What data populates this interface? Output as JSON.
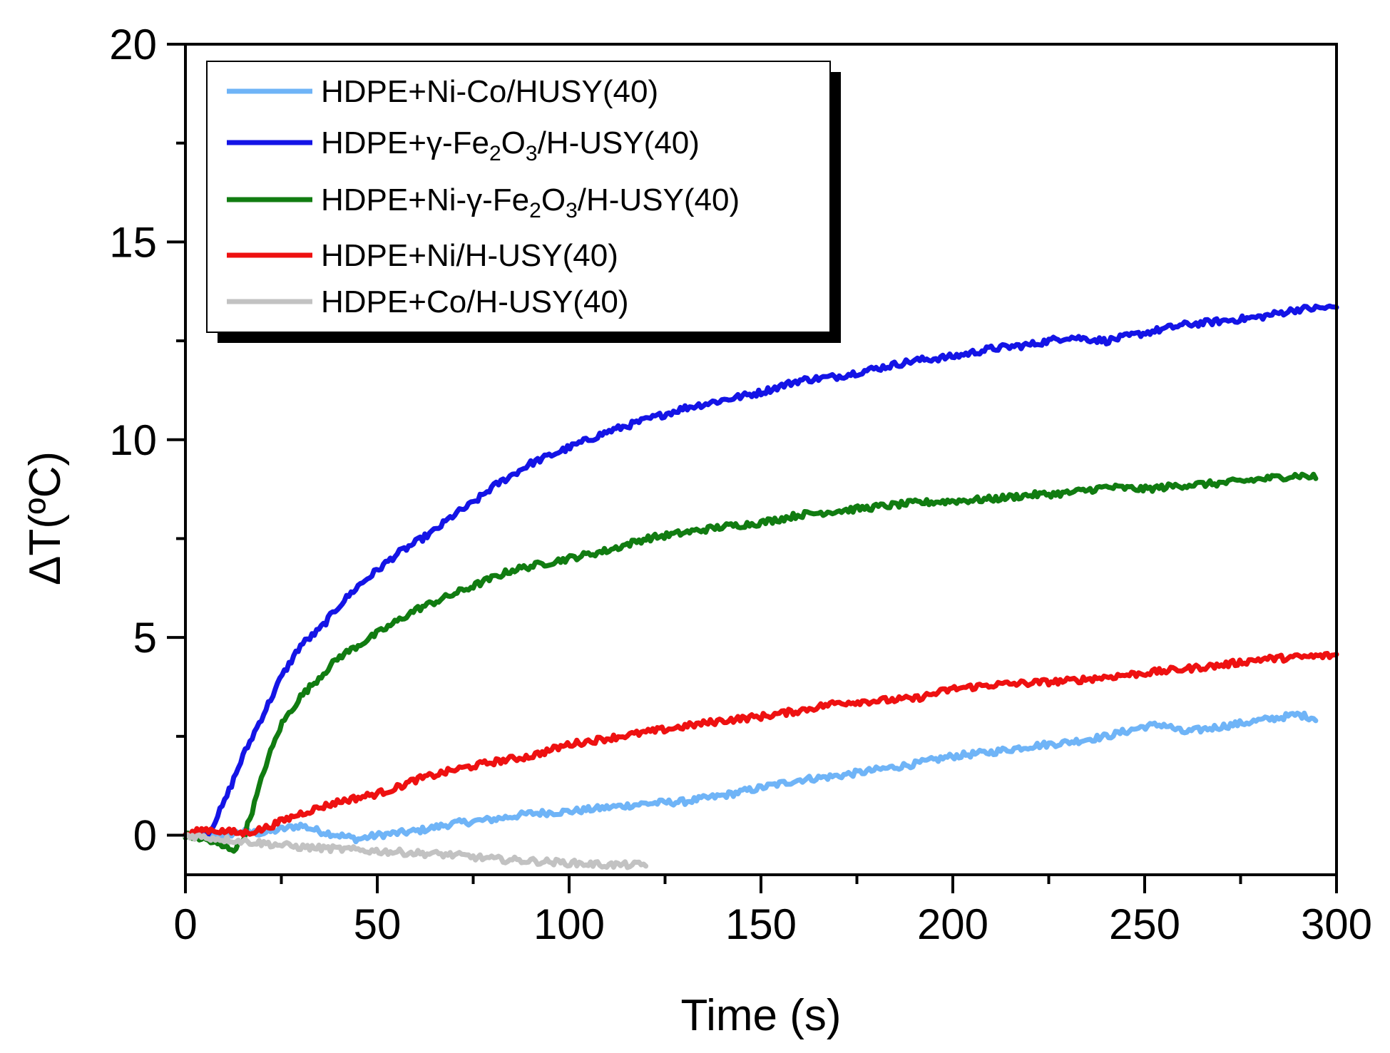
{
  "chart_data": {
    "type": "line",
    "title": "",
    "xlabel": "Time (s)",
    "ylabel": "ΔT(ºC)",
    "xlim": [
      0,
      300
    ],
    "ylim": [
      -1,
      20
    ],
    "x_ticks": [
      0,
      50,
      100,
      150,
      200,
      250,
      300
    ],
    "y_ticks": [
      0,
      5,
      10,
      15,
      20
    ],
    "legend_position": "top-left",
    "legend_shadow": true,
    "series": [
      {
        "name": "HDPE+Ni-Co/HUSY(40)",
        "label_parts": [
          {
            "t": "HDPE+Ni-Co/HUSY(40)"
          }
        ],
        "color": "#6fb4f7",
        "points": [
          [
            0,
            0
          ],
          [
            5,
            0.05
          ],
          [
            10,
            0
          ],
          [
            15,
            0.1
          ],
          [
            20,
            0.05
          ],
          [
            25,
            0.15
          ],
          [
            30,
            0.25
          ],
          [
            35,
            0.1
          ],
          [
            40,
            0
          ],
          [
            45,
            -0.1
          ],
          [
            50,
            0
          ],
          [
            60,
            0.1
          ],
          [
            70,
            0.3
          ],
          [
            80,
            0.4
          ],
          [
            90,
            0.55
          ],
          [
            100,
            0.6
          ],
          [
            110,
            0.7
          ],
          [
            120,
            0.8
          ],
          [
            130,
            0.85
          ],
          [
            140,
            1.0
          ],
          [
            150,
            1.2
          ],
          [
            160,
            1.4
          ],
          [
            170,
            1.5
          ],
          [
            180,
            1.65
          ],
          [
            190,
            1.8
          ],
          [
            200,
            2.0
          ],
          [
            210,
            2.1
          ],
          [
            220,
            2.25
          ],
          [
            230,
            2.35
          ],
          [
            240,
            2.5
          ],
          [
            250,
            2.75
          ],
          [
            255,
            2.8
          ],
          [
            260,
            2.6
          ],
          [
            270,
            2.75
          ],
          [
            280,
            2.9
          ],
          [
            290,
            3.05
          ],
          [
            295,
            2.95
          ]
        ]
      },
      {
        "name": "HDPE+γ-Fe2O3/H-USY(40)",
        "label_parts": [
          {
            "t": "HDPE+γ-Fe"
          },
          {
            "t": "2",
            "sub": true
          },
          {
            "t": "O"
          },
          {
            "t": "3",
            "sub": true
          },
          {
            "t": "/H-USY(40)"
          }
        ],
        "color": "#1414e6",
        "points": [
          [
            0,
            0
          ],
          [
            6,
            0.05
          ],
          [
            10,
            0.8
          ],
          [
            15,
            2.0
          ],
          [
            20,
            3.0
          ],
          [
            25,
            4.0
          ],
          [
            30,
            4.8
          ],
          [
            35,
            5.2
          ],
          [
            40,
            5.8
          ],
          [
            45,
            6.3
          ],
          [
            50,
            6.7
          ],
          [
            55,
            7.1
          ],
          [
            60,
            7.4
          ],
          [
            65,
            7.7
          ],
          [
            70,
            8.1
          ],
          [
            75,
            8.4
          ],
          [
            80,
            8.8
          ],
          [
            85,
            9.1
          ],
          [
            90,
            9.4
          ],
          [
            95,
            9.6
          ],
          [
            100,
            9.8
          ],
          [
            110,
            10.2
          ],
          [
            120,
            10.5
          ],
          [
            130,
            10.8
          ],
          [
            140,
            11.0
          ],
          [
            150,
            11.2
          ],
          [
            160,
            11.5
          ],
          [
            170,
            11.6
          ],
          [
            180,
            11.8
          ],
          [
            190,
            12.0
          ],
          [
            200,
            12.1
          ],
          [
            210,
            12.3
          ],
          [
            220,
            12.4
          ],
          [
            230,
            12.6
          ],
          [
            240,
            12.5
          ],
          [
            250,
            12.7
          ],
          [
            260,
            12.9
          ],
          [
            270,
            13.0
          ],
          [
            280,
            13.1
          ],
          [
            290,
            13.3
          ],
          [
            300,
            13.35
          ]
        ]
      },
      {
        "name": "HDPE+Ni-γ-Fe2O3/H-USY(40)",
        "label_parts": [
          {
            "t": "HDPE+Ni-γ-Fe"
          },
          {
            "t": "2",
            "sub": true
          },
          {
            "t": "O"
          },
          {
            "t": "3",
            "sub": true
          },
          {
            "t": "/H-USY(40)"
          }
        ],
        "color": "#117c11",
        "points": [
          [
            0,
            0
          ],
          [
            5,
            -0.1
          ],
          [
            10,
            -0.3
          ],
          [
            13,
            -0.35
          ],
          [
            15,
            -0.1
          ],
          [
            18,
            0.8
          ],
          [
            21,
            1.8
          ],
          [
            25,
            2.8
          ],
          [
            30,
            3.5
          ],
          [
            35,
            4.0
          ],
          [
            40,
            4.5
          ],
          [
            45,
            4.8
          ],
          [
            50,
            5.1
          ],
          [
            55,
            5.4
          ],
          [
            60,
            5.7
          ],
          [
            65,
            5.9
          ],
          [
            70,
            6.1
          ],
          [
            75,
            6.3
          ],
          [
            80,
            6.5
          ],
          [
            85,
            6.7
          ],
          [
            90,
            6.8
          ],
          [
            95,
            6.9
          ],
          [
            100,
            7.0
          ],
          [
            110,
            7.2
          ],
          [
            120,
            7.5
          ],
          [
            130,
            7.65
          ],
          [
            140,
            7.8
          ],
          [
            150,
            7.9
          ],
          [
            160,
            8.1
          ],
          [
            170,
            8.2
          ],
          [
            180,
            8.3
          ],
          [
            190,
            8.4
          ],
          [
            200,
            8.45
          ],
          [
            210,
            8.5
          ],
          [
            220,
            8.6
          ],
          [
            230,
            8.65
          ],
          [
            240,
            8.8
          ],
          [
            250,
            8.75
          ],
          [
            260,
            8.85
          ],
          [
            270,
            8.9
          ],
          [
            280,
            9.0
          ],
          [
            290,
            9.1
          ],
          [
            295,
            9.05
          ]
        ]
      },
      {
        "name": "HDPE+Ni/H-USY(40)",
        "label_parts": [
          {
            "t": "HDPE+Ni/H-USY(40)"
          }
        ],
        "color": "#ee1111",
        "points": [
          [
            0,
            0
          ],
          [
            5,
            0.15
          ],
          [
            10,
            0.1
          ],
          [
            15,
            0.05
          ],
          [
            20,
            0.15
          ],
          [
            25,
            0.35
          ],
          [
            30,
            0.55
          ],
          [
            35,
            0.7
          ],
          [
            40,
            0.85
          ],
          [
            45,
            0.95
          ],
          [
            50,
            1.05
          ],
          [
            55,
            1.2
          ],
          [
            60,
            1.4
          ],
          [
            70,
            1.65
          ],
          [
            80,
            1.85
          ],
          [
            90,
            2.0
          ],
          [
            100,
            2.3
          ],
          [
            110,
            2.45
          ],
          [
            120,
            2.6
          ],
          [
            130,
            2.75
          ],
          [
            140,
            2.9
          ],
          [
            150,
            3.0
          ],
          [
            160,
            3.15
          ],
          [
            170,
            3.35
          ],
          [
            180,
            3.4
          ],
          [
            190,
            3.45
          ],
          [
            200,
            3.7
          ],
          [
            210,
            3.8
          ],
          [
            220,
            3.85
          ],
          [
            230,
            3.9
          ],
          [
            240,
            4.0
          ],
          [
            250,
            4.1
          ],
          [
            260,
            4.2
          ],
          [
            270,
            4.3
          ],
          [
            280,
            4.45
          ],
          [
            290,
            4.5
          ],
          [
            300,
            4.55
          ]
        ]
      },
      {
        "name": "HDPE+Co/H-USY(40)",
        "label_parts": [
          {
            "t": "HDPE+Co/H-USY(40)"
          }
        ],
        "color": "#c2c2c2",
        "points": [
          [
            0,
            0
          ],
          [
            10,
            -0.1
          ],
          [
            20,
            -0.2
          ],
          [
            30,
            -0.3
          ],
          [
            40,
            -0.35
          ],
          [
            50,
            -0.4
          ],
          [
            60,
            -0.45
          ],
          [
            70,
            -0.5
          ],
          [
            80,
            -0.6
          ],
          [
            90,
            -0.65
          ],
          [
            100,
            -0.7
          ],
          [
            110,
            -0.75
          ],
          [
            120,
            -0.75
          ]
        ]
      }
    ]
  }
}
